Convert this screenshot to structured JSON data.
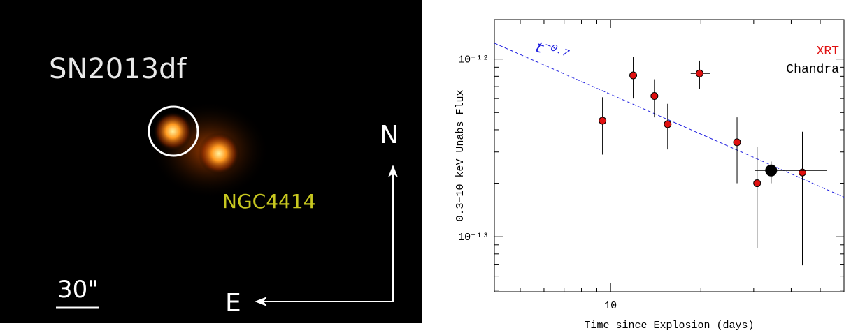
{
  "image": {
    "object_label": "SN2013df",
    "galaxy_label": "NGC4414",
    "north_label": "N",
    "east_label": "E",
    "scale_label": "30\""
  },
  "chart_data": {
    "type": "scatter",
    "x_label": "Time since Explosion (days)",
    "y_label": "0.3−10 keV Unabs Flux",
    "log_x": true,
    "log_y": true,
    "xlim": [
      4.1,
      60
    ],
    "ylim": [
      4.9e-14,
      1.67e-12
    ],
    "xticks": [
      10
    ],
    "xticks_minor": [
      5,
      6,
      7,
      8,
      9,
      20,
      30,
      40,
      50
    ],
    "yticks": [
      {
        "value": 1e-12,
        "label": "10⁻¹²"
      },
      {
        "value": 1e-13,
        "label": "10⁻¹³"
      }
    ],
    "yticks_minor": [
      5e-14,
      6e-14,
      7e-14,
      8e-14,
      9e-14,
      2e-13,
      3e-13,
      4e-13,
      5e-13,
      6e-13,
      7e-13,
      8e-13,
      9e-13
    ],
    "legend_position": "upper right",
    "series": [
      {
        "name": "XRT",
        "color": "#e01010",
        "marker_size": 5,
        "x": [
          9.4,
          11.9,
          14.0,
          15.5,
          19.8,
          26.4,
          30.8,
          43.6
        ],
        "x_low": [
          null,
          null,
          13.5,
          null,
          18.5,
          null,
          null,
          null
        ],
        "x_high": [
          null,
          null,
          14.6,
          null,
          21.5,
          null,
          null,
          null
        ],
        "values": [
          4.5e-13,
          8.1e-13,
          6.2e-13,
          4.3e-13,
          8.3e-13,
          3.4e-13,
          2e-13,
          2.3e-13
        ],
        "y_low": [
          2.9e-13,
          6e-13,
          4.7e-13,
          3.1e-13,
          6.8e-13,
          2e-13,
          8.6e-14,
          6.9e-14
        ],
        "y_high": [
          6.1e-13,
          1.03e-12,
          7.7e-13,
          5.6e-13,
          9.8e-13,
          4.7e-13,
          3.2e-13,
          3.9e-13
        ]
      },
      {
        "name": "Chandra",
        "color": "#000000",
        "marker_size": 8,
        "x": [
          34.3
        ],
        "x_low": [
          30.3
        ],
        "x_high": [
          52.6
        ],
        "values": [
          2.36e-13
        ],
        "y_low": [
          2e-13
        ],
        "y_high": [
          2.65e-13
        ]
      }
    ],
    "fit_line": {
      "color": "#2020e0",
      "x": [
        4.1,
        60
      ],
      "values": [
        1.23e-12,
        1.67e-13
      ]
    },
    "fit_label": {
      "base": "t",
      "exponent": "−0.7"
    }
  }
}
